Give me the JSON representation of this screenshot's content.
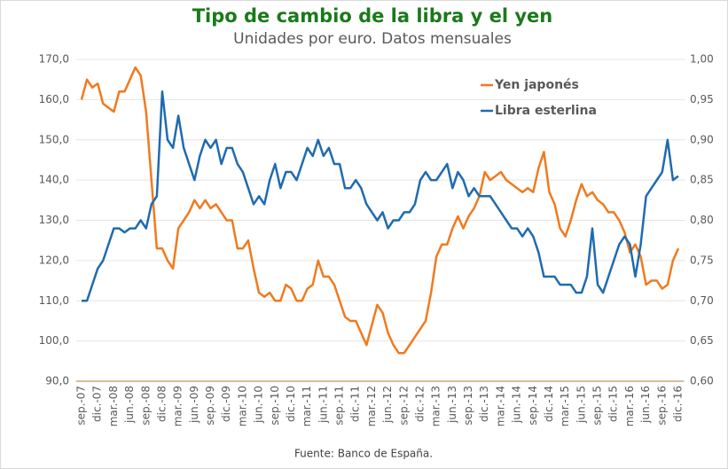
{
  "chart_data": {
    "type": "line",
    "title": "Tipo de cambio de la libra y el yen",
    "subtitle": "Unidades por euro. Datos mensuales",
    "source": "Fuente: Banco de España.",
    "categories": [
      "sep.-07",
      null,
      null,
      "dic.-07",
      null,
      null,
      "mar.-08",
      null,
      null,
      "jun.-08",
      null,
      null,
      "sep.-08",
      null,
      null,
      "dic.-08",
      null,
      null,
      "mar.-09",
      null,
      null,
      "jun.-09",
      null,
      null,
      "sep.-09",
      null,
      null,
      "dic.-09",
      null,
      null,
      "mar.-10",
      null,
      null,
      "jun.-10",
      null,
      null,
      "sep.-10",
      null,
      null,
      "dic.-10",
      null,
      null,
      "mar.-11",
      null,
      null,
      "jun.-11",
      null,
      null,
      "sep.-11",
      null,
      null,
      "dic.-11",
      null,
      null,
      "mar.-12",
      null,
      null,
      "jun.-12",
      null,
      null,
      "sep.-12",
      null,
      null,
      "dic.-12",
      null,
      null,
      "mar.-13",
      null,
      null,
      "jun.-13",
      null,
      null,
      "sep.-13",
      null,
      null,
      "dic.-13",
      null,
      null,
      "mar.-14",
      null,
      null,
      "jun.-14",
      null,
      null,
      "sep.-14",
      null,
      null,
      "dic.-14",
      null,
      null,
      "mar.-15",
      null,
      null,
      "jun.-15",
      null,
      null,
      "sep.-15",
      null,
      null,
      "dic.-15",
      null,
      null,
      "mar.-16",
      null,
      null,
      "jun.-16",
      null,
      null,
      "sep.-16",
      null,
      null,
      "dic.-16"
    ],
    "series": [
      {
        "name": "Yen japonés",
        "color": "#f07a1e",
        "values": [
          160,
          165,
          163,
          164,
          159,
          158,
          157,
          162,
          162,
          165,
          168,
          166,
          157,
          140,
          123,
          123,
          120,
          118,
          128,
          130,
          132,
          135,
          133,
          135,
          133,
          134,
          132,
          130,
          130,
          123,
          123,
          125,
          118,
          112,
          111,
          112,
          110,
          110,
          114,
          113,
          110,
          110,
          113,
          114,
          120,
          116,
          116,
          114,
          110,
          106,
          105,
          105,
          102,
          99,
          104,
          109,
          107,
          102,
          99,
          97,
          97,
          99,
          101,
          103,
          105,
          112,
          121,
          124,
          124,
          128,
          131,
          128,
          131,
          133,
          136,
          142,
          140,
          141,
          142,
          140,
          139,
          138,
          137,
          138,
          137,
          143,
          147,
          137,
          134,
          128,
          126,
          130,
          135,
          139,
          136,
          137,
          135,
          134,
          132,
          132,
          130,
          127,
          122,
          124,
          121,
          114,
          115,
          115,
          113,
          114,
          120,
          123
        ]
      },
      {
        "name": "Libra esterlina",
        "color": "#1f6bb0",
        "axis": "y2",
        "values": [
          0.7,
          0.7,
          0.72,
          0.74,
          0.75,
          0.77,
          0.79,
          0.79,
          0.785,
          0.79,
          0.79,
          0.8,
          0.79,
          0.82,
          0.83,
          0.96,
          0.9,
          0.89,
          0.93,
          0.89,
          0.87,
          0.85,
          0.88,
          0.9,
          0.89,
          0.9,
          0.87,
          0.89,
          0.89,
          0.87,
          0.86,
          0.84,
          0.82,
          0.83,
          0.82,
          0.85,
          0.87,
          0.84,
          0.86,
          0.86,
          0.85,
          0.87,
          0.89,
          0.88,
          0.9,
          0.88,
          0.89,
          0.87,
          0.87,
          0.84,
          0.84,
          0.85,
          0.84,
          0.82,
          0.81,
          0.8,
          0.81,
          0.79,
          0.8,
          0.8,
          0.81,
          0.81,
          0.82,
          0.85,
          0.86,
          0.85,
          0.85,
          0.86,
          0.87,
          0.84,
          0.86,
          0.85,
          0.83,
          0.84,
          0.83,
          0.83,
          0.83,
          0.82,
          0.81,
          0.8,
          0.79,
          0.79,
          0.78,
          0.79,
          0.78,
          0.76,
          0.73,
          0.73,
          0.73,
          0.72,
          0.72,
          0.72,
          0.71,
          0.71,
          0.73,
          0.79,
          0.72,
          0.71,
          0.73,
          0.75,
          0.77,
          0.78,
          0.77,
          0.73,
          0.77,
          0.83,
          0.84,
          0.85,
          0.86,
          0.9,
          0.85,
          0.855
        ]
      }
    ],
    "ylim": [
      90,
      170
    ],
    "yticks": [
      {
        "value": 90,
        "label": "90,0"
      },
      {
        "value": 100,
        "label": "100,0"
      },
      {
        "value": 110,
        "label": "110,0"
      },
      {
        "value": 120,
        "label": "120,0"
      },
      {
        "value": 130,
        "label": "130,0"
      },
      {
        "value": 140,
        "label": "140,0"
      },
      {
        "value": 150,
        "label": "150,0"
      },
      {
        "value": 160,
        "label": "160,0"
      },
      {
        "value": 170,
        "label": "170,0"
      }
    ],
    "y2lim": [
      0.6,
      1.0
    ],
    "y2ticks": [
      {
        "value": 0.6,
        "label": "0,60"
      },
      {
        "value": 0.65,
        "label": "0,65"
      },
      {
        "value": 0.7,
        "label": "0,70"
      },
      {
        "value": 0.75,
        "label": "0,75"
      },
      {
        "value": 0.8,
        "label": "0,80"
      },
      {
        "value": 0.85,
        "label": "0,85"
      },
      {
        "value": 0.9,
        "label": "0,90"
      },
      {
        "value": 0.95,
        "label": "0,95"
      },
      {
        "value": 1.0,
        "label": "1,00"
      }
    ],
    "grid": true,
    "legend": "upper right"
  }
}
